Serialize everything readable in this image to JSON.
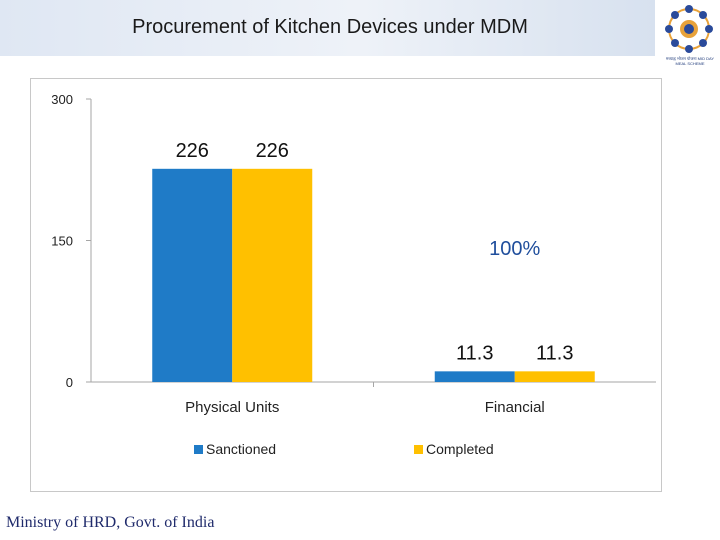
{
  "slide": {
    "title": "Procurement of Kitchen Devices under MDM",
    "logo_caption": "मध्याह्न भोजन योजना MID DAY MEAL SCHEME",
    "footer": "Ministry of HRD, Govt. of India"
  },
  "chart_data": {
    "type": "bar",
    "categories": [
      "Physical Units",
      "Financial"
    ],
    "series": [
      {
        "name": "Sanctioned",
        "values": [
          226,
          11.3
        ],
        "labels": [
          "226",
          "11.3"
        ],
        "color": "#1f7bc7"
      },
      {
        "name": "Completed",
        "values": [
          226,
          11.3
        ],
        "labels": [
          "226",
          "11.3"
        ],
        "color": "#ffc000"
      }
    ],
    "ylim": [
      0,
      300
    ],
    "yticks": [
      "0",
      "150",
      "300"
    ],
    "annotation": "100%",
    "annotation_color": "#1f4e9c",
    "legend": "bottom",
    "grid": false
  }
}
